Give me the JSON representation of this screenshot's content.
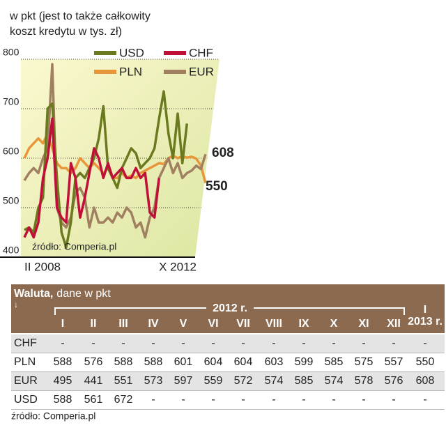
{
  "chart_data": {
    "type": "line",
    "subtitle": "w pkt (jest to także całkowity koszt kredytu w tys. zł)",
    "categories": [
      "II 2008",
      null,
      null,
      null,
      null,
      null,
      null,
      null,
      null,
      null,
      null,
      null,
      null,
      null,
      null,
      null,
      null,
      null,
      null,
      null,
      null,
      null,
      null,
      null,
      null,
      null,
      null,
      null,
      null,
      null,
      null,
      null,
      null,
      null,
      null,
      null,
      null,
      null,
      null,
      "X 2012"
    ],
    "ylim": [
      400,
      800
    ],
    "yticks": [
      400,
      500,
      600,
      700,
      800
    ],
    "grid": true,
    "series": [
      {
        "name": "USD",
        "color": "#6b7a1e",
        "values": [
          455,
          460,
          450,
          500,
          520,
          700,
          710,
          560,
          450,
          420,
          470,
          560,
          570,
          560,
          580,
          600,
          640,
          705,
          580,
          560,
          540,
          580,
          600,
          620,
          610,
          580,
          590,
          600,
          620,
          680,
          735,
          650,
          600,
          690,
          590,
          670,
          null,
          null,
          null,
          null
        ]
      },
      {
        "name": "CHF",
        "color": "#c0103a",
        "values": [
          440,
          460,
          440,
          470,
          560,
          600,
          680,
          500,
          480,
          470,
          590,
          560,
          480,
          520,
          570,
          620,
          600,
          560,
          590,
          560,
          570,
          580,
          560,
          560,
          580,
          560,
          570,
          490,
          480,
          560,
          null,
          null,
          null,
          null,
          null,
          null,
          null,
          null,
          null,
          null
        ]
      },
      {
        "name": "PLN",
        "color": "#e8963a",
        "values": [
          600,
          620,
          630,
          640,
          630,
          650,
          620,
          590,
          580,
          580,
          570,
          580,
          600,
          590,
          580,
          590,
          580,
          570,
          580,
          560,
          560,
          570,
          560,
          565,
          560,
          570,
          575,
          580,
          585,
          590,
          588,
          600,
          605,
          600,
          604,
          601,
          603,
          599,
          585,
          550
        ]
      },
      {
        "name": "EUR",
        "color": "#a08060",
        "values": [
          555,
          570,
          580,
          570,
          600,
          620,
          790,
          500,
          470,
          460,
          480,
          530,
          540,
          520,
          460,
          500,
          470,
          470,
          480,
          470,
          490,
          480,
          500,
          490,
          460,
          470,
          440,
          480,
          500,
          560,
          580,
          600,
          570,
          590,
          560,
          570,
          575,
          585,
          578,
          608
        ]
      }
    ],
    "annotations": [
      "608",
      "550"
    ],
    "source": "źródło: Comperia.pl"
  },
  "table": {
    "title": "Waluta,",
    "subtitle": "dane w pkt",
    "group": "2012 r.",
    "columns": [
      "I",
      "II",
      "III",
      "IV",
      "V",
      "VI",
      "VII",
      "VIII",
      "IX",
      "X",
      "XI",
      "XII"
    ],
    "last_top": "I",
    "last_bottom": "2013 r.",
    "rows": [
      [
        "CHF",
        "-",
        "-",
        "-",
        "-",
        "-",
        "-",
        "-",
        "-",
        "-",
        "-",
        "-",
        "-",
        "-"
      ],
      [
        "PLN",
        "588",
        "576",
        "588",
        "588",
        "601",
        "604",
        "604",
        "603",
        "599",
        "585",
        "575",
        "557",
        "550"
      ],
      [
        "EUR",
        "495",
        "441",
        "551",
        "573",
        "597",
        "559",
        "572",
        "574",
        "585",
        "574",
        "578",
        "576",
        "608"
      ],
      [
        "USD",
        "588",
        "561",
        "672",
        "-",
        "-",
        "-",
        "-",
        "-",
        "-",
        "-",
        "-",
        "-",
        "-"
      ]
    ],
    "source": "źródło: Comperia.pl"
  }
}
